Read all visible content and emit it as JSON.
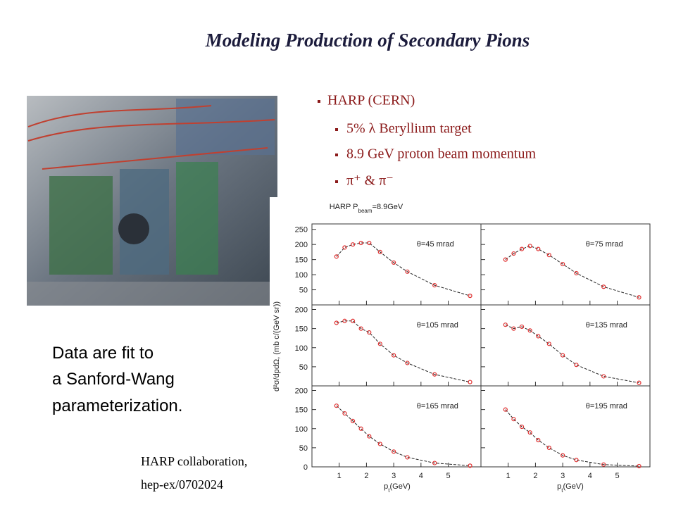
{
  "title": "Modeling Production of Secondary Pions",
  "bullets": [
    {
      "text": "HARP (CERN)",
      "sub": [
        "5% λ Beryllium target",
        "8.9 GeV proton beam momentum",
        "π⁺ & π⁻"
      ]
    }
  ],
  "note": [
    "Data are fit to",
    "a Sanford-Wang",
    "parameterization."
  ],
  "citation": [
    "HARP collaboration,",
    "hep-ex/0702024"
  ],
  "plot": {
    "title": [
      "HARP P",
      "beam",
      "=8.9GeV"
    ],
    "ylabel": "d²σ/dpdΩ, (mb c/(GeV sr))",
    "xlabel": [
      "p",
      "t",
      "(GeV)"
    ]
  },
  "chart_data": [
    {
      "type": "scatter",
      "label": "θ=45 mrad",
      "color": "#e03030",
      "x": [
        0.9,
        1.2,
        1.5,
        1.8,
        2.1,
        2.5,
        3.0,
        3.5,
        4.5,
        5.8
      ],
      "values": [
        160,
        190,
        200,
        205,
        205,
        175,
        140,
        110,
        65,
        30
      ],
      "xlim": [
        0,
        6.2
      ],
      "xticks": [
        1,
        2,
        3,
        4,
        5
      ],
      "ylim": [
        0,
        268
      ],
      "yticks": [
        50,
        100,
        150,
        200,
        250
      ]
    },
    {
      "type": "scatter",
      "label": "θ=75 mrad",
      "color": "#e03030",
      "x": [
        0.9,
        1.2,
        1.5,
        1.8,
        2.1,
        2.5,
        3.0,
        3.5,
        4.5,
        5.8
      ],
      "values": [
        150,
        170,
        185,
        195,
        185,
        165,
        135,
        105,
        60,
        25
      ],
      "xlim": [
        0,
        6.2
      ],
      "xticks": [
        1,
        2,
        3,
        4,
        5
      ],
      "ylim": [
        0,
        268
      ],
      "yticks": [
        50,
        100,
        150,
        200,
        250
      ]
    },
    {
      "type": "scatter",
      "label": "θ=105 mrad",
      "color": "#e03030",
      "x": [
        0.9,
        1.2,
        1.5,
        1.8,
        2.1,
        2.5,
        3.0,
        3.5,
        4.5,
        5.8
      ],
      "values": [
        165,
        170,
        170,
        150,
        140,
        110,
        80,
        60,
        30,
        10
      ],
      "xlim": [
        0,
        6.2
      ],
      "xticks": [
        1,
        2,
        3,
        4,
        5
      ],
      "ylim": [
        0,
        212
      ],
      "yticks": [
        50,
        100,
        150,
        200
      ]
    },
    {
      "type": "scatter",
      "label": "θ=135 mrad",
      "color": "#e03030",
      "x": [
        0.9,
        1.2,
        1.5,
        1.8,
        2.1,
        2.5,
        3.0,
        3.5,
        4.5,
        5.8
      ],
      "values": [
        160,
        150,
        155,
        145,
        130,
        110,
        80,
        55,
        25,
        8
      ],
      "xlim": [
        0,
        6.2
      ],
      "xticks": [
        1,
        2,
        3,
        4,
        5
      ],
      "ylim": [
        0,
        212
      ],
      "yticks": [
        50,
        100,
        150,
        200
      ]
    },
    {
      "type": "scatter",
      "label": "θ=165 mrad",
      "color": "#e03030",
      "x": [
        0.9,
        1.2,
        1.5,
        1.8,
        2.1,
        2.5,
        3.0,
        3.5,
        4.5,
        5.8
      ],
      "values": [
        160,
        140,
        120,
        100,
        80,
        60,
        40,
        25,
        10,
        3
      ],
      "xlim": [
        0,
        6.2
      ],
      "xticks": [
        1,
        2,
        3,
        4,
        5
      ],
      "ylim": [
        0,
        212
      ],
      "yticks": [
        0,
        50,
        100,
        150,
        200
      ]
    },
    {
      "type": "scatter",
      "label": "θ=195 mrad",
      "color": "#e03030",
      "x": [
        0.9,
        1.2,
        1.5,
        1.8,
        2.1,
        2.5,
        3.0,
        3.5,
        4.5,
        5.8
      ],
      "values": [
        150,
        125,
        105,
        90,
        70,
        50,
        30,
        18,
        6,
        2
      ],
      "xlim": [
        0,
        6.2
      ],
      "xticks": [
        1,
        2,
        3,
        4,
        5
      ],
      "ylim": [
        0,
        212
      ],
      "yticks": [
        0,
        50,
        100,
        150,
        200
      ]
    }
  ]
}
